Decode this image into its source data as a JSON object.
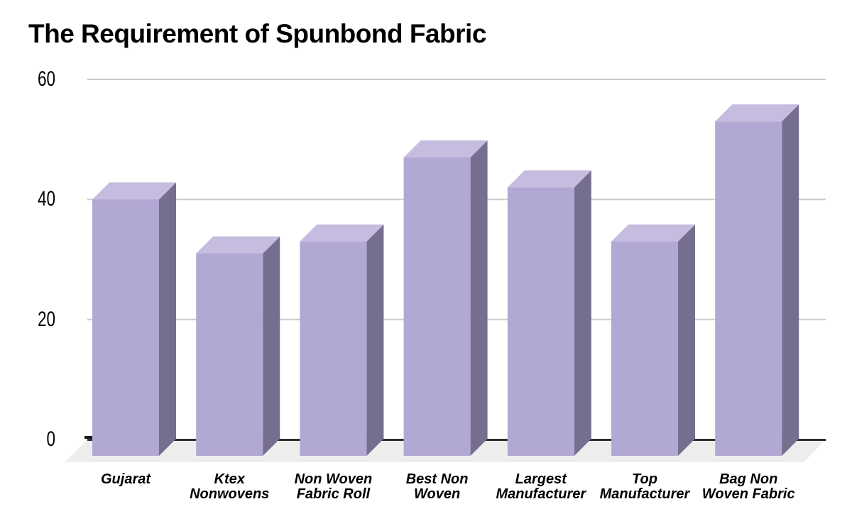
{
  "page": {
    "background": "#ffffff"
  },
  "chart_data": {
    "type": "bar",
    "variant": "3d-column",
    "title": "The Requirement of Spunbond Fabric",
    "categories": [
      "Gujarat",
      "Ktex Nonwovens",
      "Non Woven Fabric Roll",
      "Best Non Woven",
      "Largest Manufacturer",
      "Top Manufacturer",
      "Bag Non Woven Fabric"
    ],
    "category_label_lines": [
      [
        "Gujarat"
      ],
      [
        "Ktex",
        "Nonwovens"
      ],
      [
        "Non Woven",
        "Fabric Roll"
      ],
      [
        "Best Non",
        "Woven"
      ],
      [
        "Largest",
        "Manufacturer"
      ],
      [
        "Top",
        "Manufacturer"
      ],
      [
        "Bag Non",
        "Woven Fabric"
      ]
    ],
    "values": [
      40,
      31,
      33,
      47,
      42,
      33,
      53
    ],
    "xlabel": "",
    "ylabel": "",
    "y_ticks": [
      0,
      20,
      40,
      60
    ],
    "ylim": [
      0,
      60
    ],
    "grid": true,
    "legend": "none",
    "colors": {
      "bar_front": "#b2a8d4",
      "bar_top": "#c5bcdf",
      "bar_side": "#766e8e",
      "floor": "#ededed",
      "gridline": "#cbcbcb",
      "zero_line": "#2d2d2d",
      "tick": "#1a1a1a",
      "text": "#000000",
      "background": "#ffffff"
    }
  }
}
